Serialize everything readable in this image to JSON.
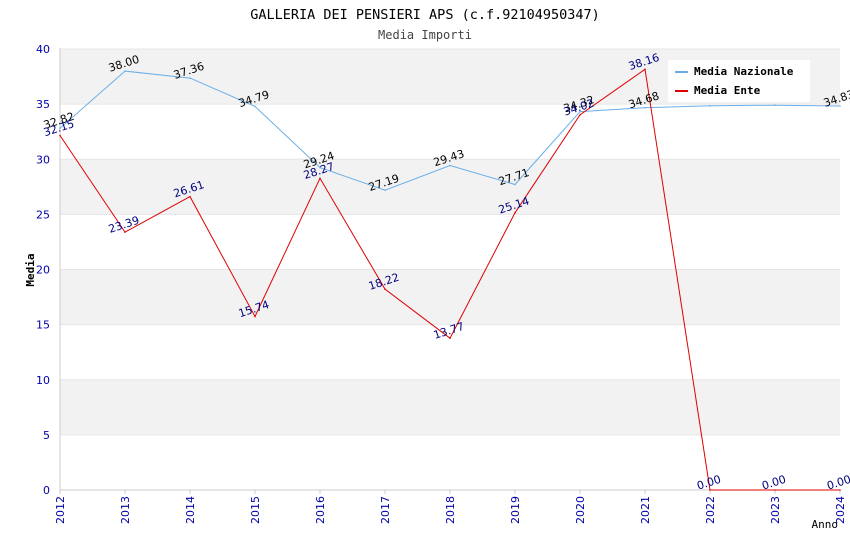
{
  "chart_data": {
    "type": "line",
    "title": "GALLERIA DEI PENSIERI APS (c.f.92104950347)",
    "subtitle": "Media Importi",
    "xlabel": "Anno",
    "ylabel": "Media",
    "ylim": [
      0,
      40
    ],
    "yticks": [
      "0",
      "5",
      "10",
      "15",
      "20",
      "25",
      "30",
      "35",
      "40"
    ],
    "categories": [
      "2012",
      "2013",
      "2014",
      "2015",
      "2016",
      "2017",
      "2018",
      "2019",
      "2020",
      "2021",
      "2022",
      "2023",
      "2024"
    ],
    "series": [
      {
        "name": "Media Nazionale",
        "values": [
          32.82,
          38.0,
          37.36,
          34.79,
          29.24,
          27.19,
          29.43,
          27.71,
          34.32,
          34.68,
          34.85,
          34.9,
          34.83
        ],
        "labels": [
          "32.82",
          "38.00",
          "37.36",
          "34.79",
          "29.24",
          "27.19",
          "29.43",
          "27.71",
          "34.32",
          "34.68",
          null,
          null,
          "34.83"
        ]
      },
      {
        "name": "Media Ente",
        "values": [
          32.15,
          23.39,
          26.61,
          15.74,
          28.27,
          18.22,
          13.77,
          25.14,
          34.02,
          38.16,
          0.0,
          0.0,
          0.0
        ],
        "labels": [
          "32.15",
          "23.39",
          "26.61",
          "15.74",
          "28.27",
          "18.22",
          "13.77",
          "25.14",
          "34.02",
          "38.16",
          "0.00",
          "0.00",
          "0.00"
        ]
      }
    ],
    "colors": {
      "nazionale": "#6aaee8",
      "ente": "#e00000",
      "nazionale_label": "#000000",
      "ente_label": "#000080",
      "axis_tick": "#0000aa",
      "band": "#f2f2f2"
    },
    "legend_position": "top-right"
  }
}
